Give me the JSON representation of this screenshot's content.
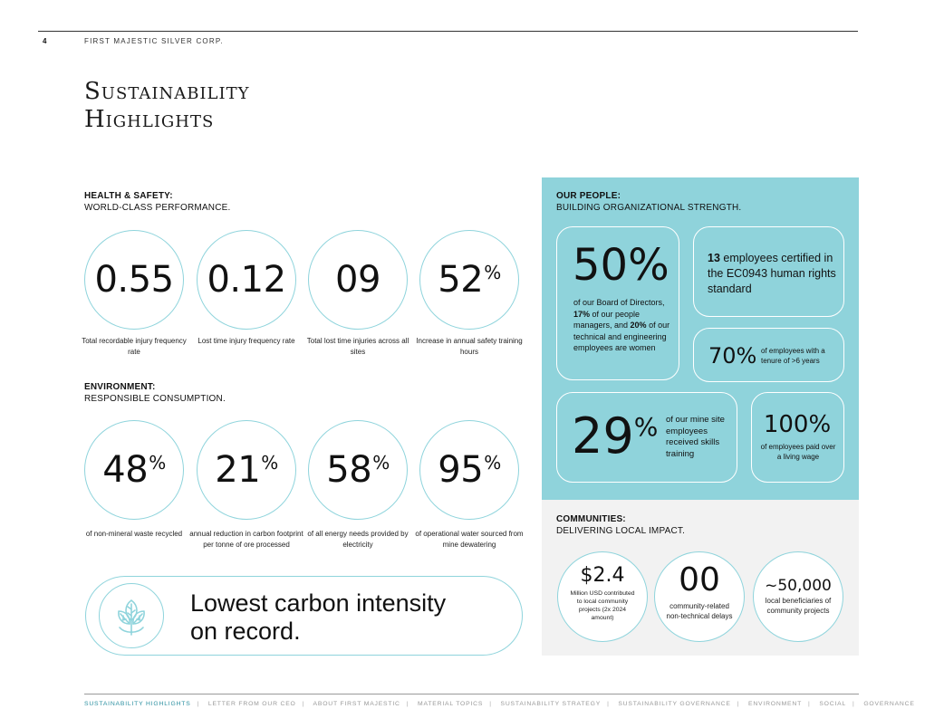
{
  "header": {
    "page_number": "4",
    "company": "FIRST MAJESTIC SILVER CORP."
  },
  "title": {
    "line1": "Sustainability",
    "line2": "Highlights"
  },
  "health_safety": {
    "heading_bold": "HEALTH & SAFETY:",
    "heading": "WORLD-CLASS PERFORMANCE.",
    "stats": [
      {
        "value": "0.55",
        "suffix": "",
        "caption": "Total recordable injury frequency rate"
      },
      {
        "value": "0.12",
        "suffix": "",
        "caption": "Lost time injury frequency rate"
      },
      {
        "value": "09",
        "suffix": "",
        "caption": "Total lost time injuries across all sites"
      },
      {
        "value": "52",
        "suffix": "%",
        "caption": "Increase in annual safety training hours"
      }
    ]
  },
  "environment": {
    "heading_bold": "ENVIRONMENT:",
    "heading": "RESPONSIBLE CONSUMPTION.",
    "stats": [
      {
        "value": "48",
        "suffix": "%",
        "caption": "of non-mineral waste recycled"
      },
      {
        "value": "21",
        "suffix": "%",
        "caption": "annual reduction in carbon footprint per tonne of ore processed"
      },
      {
        "value": "58",
        "suffix": "%",
        "caption": "of all energy needs provided by electricity"
      },
      {
        "value": "95",
        "suffix": "%",
        "caption": "of operational water sourced from mine dewatering"
      }
    ],
    "banner_line1": "Lowest carbon intensity",
    "banner_line2": "on record.",
    "banner_icon": "leaves-icon"
  },
  "people": {
    "heading_bold": "OUR PEOPLE:",
    "heading": "BUILDING ORGANIZATIONAL STRENGTH.",
    "board": {
      "value": "50%",
      "text_1": "of our Board of Directors, ",
      "bold_1": "17%",
      "text_2": " of our people managers, and ",
      "bold_2": "20%",
      "text_3": " of our technical and engineering employees are women"
    },
    "certified": {
      "bold": "13",
      "text": " employees certified in the EC0943 human rights standard"
    },
    "tenure": {
      "value": "70%",
      "caption": "of employees with a tenure of >6 years"
    },
    "training": {
      "value": "29",
      "suffix": "%",
      "caption": "of our mine site employees received skills training"
    },
    "wage": {
      "value": "100%",
      "caption": "of employees paid over a living wage"
    }
  },
  "communities": {
    "heading_bold": "COMMUNITIES:",
    "heading": "DELIVERING LOCAL IMPACT.",
    "stats": [
      {
        "value": "$2.4",
        "caption": "Million USD contributed to local community projects (2x 2024 amount)"
      },
      {
        "value": "00",
        "caption": "community-related non-technical delays"
      },
      {
        "value": "~50,000",
        "caption": "local beneficiaries of community projects"
      }
    ]
  },
  "footer": {
    "items": [
      "SUSTAINABILITY HIGHLIGHTS",
      "LETTER FROM OUR CEO",
      "ABOUT FIRST MAJESTIC",
      "MATERIAL TOPICS",
      "SUSTAINABILITY STRATEGY",
      "SUSTAINABILITY GOVERNANCE",
      "ENVIRONMENT",
      "SOCIAL",
      "GOVERNANCE"
    ],
    "separator": "|"
  },
  "colors": {
    "accent": "#8fd4dc",
    "panel": "#8fd3db",
    "communities_bg": "#f2f2f2",
    "footer_active": "#2a8fa0"
  }
}
